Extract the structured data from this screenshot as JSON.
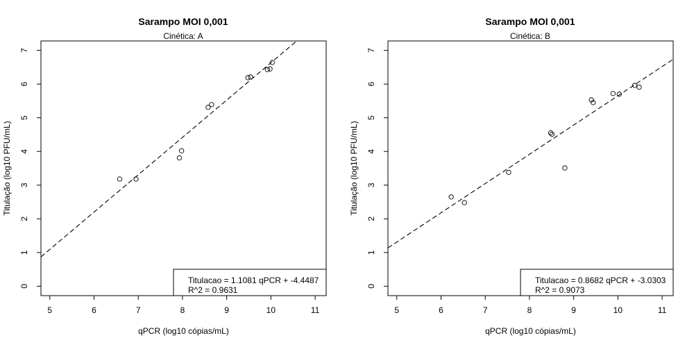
{
  "chart_data": [
    {
      "type": "scatter",
      "title": "Sarampo MOI 0,001",
      "subtitle": "Cinética: A",
      "xlabel": "qPCR (log10 cópias/mL)",
      "ylabel": "Titulação (log10 PFU/mL)",
      "xlim": [
        4.8,
        11.25
      ],
      "ylim": [
        -0.28,
        7.28
      ],
      "xticks": [
        5,
        6,
        7,
        8,
        9,
        10,
        11
      ],
      "yticks": [
        0,
        1,
        2,
        3,
        4,
        5,
        6,
        7
      ],
      "grid": false,
      "points": [
        {
          "x": 6.58,
          "y": 3.18
        },
        {
          "x": 6.95,
          "y": 3.18
        },
        {
          "x": 7.93,
          "y": 3.81
        },
        {
          "x": 7.98,
          "y": 4.02
        },
        {
          "x": 8.58,
          "y": 5.31
        },
        {
          "x": 8.66,
          "y": 5.39
        },
        {
          "x": 9.48,
          "y": 6.19
        },
        {
          "x": 9.54,
          "y": 6.21
        },
        {
          "x": 9.92,
          "y": 6.43
        },
        {
          "x": 9.98,
          "y": 6.45
        },
        {
          "x": 10.03,
          "y": 6.64
        }
      ],
      "fit": {
        "slope": 1.1081,
        "intercept": -4.4487
      },
      "legend": {
        "position": "bottom-right",
        "line1": "Titulacao = 1.1081 qPCR + -4.4487",
        "line2": "R^2 = 0.9631"
      }
    },
    {
      "type": "scatter",
      "title": "Sarampo MOI 0,001",
      "subtitle": "Cinética: B",
      "xlabel": "qPCR (log10 cópias/mL)",
      "ylabel": "Titulação (log10 PFU/mL)",
      "xlim": [
        4.8,
        11.25
      ],
      "ylim": [
        -0.28,
        7.28
      ],
      "xticks": [
        5,
        6,
        7,
        8,
        9,
        10,
        11
      ],
      "yticks": [
        0,
        1,
        2,
        3,
        4,
        5,
        6,
        7
      ],
      "grid": false,
      "points": [
        {
          "x": 6.23,
          "y": 2.65
        },
        {
          "x": 6.53,
          "y": 2.48
        },
        {
          "x": 7.53,
          "y": 3.38
        },
        {
          "x": 8.48,
          "y": 4.55
        },
        {
          "x": 8.51,
          "y": 4.51
        },
        {
          "x": 8.8,
          "y": 3.51
        },
        {
          "x": 9.4,
          "y": 5.53
        },
        {
          "x": 9.44,
          "y": 5.45
        },
        {
          "x": 9.89,
          "y": 5.72
        },
        {
          "x": 10.03,
          "y": 5.7
        },
        {
          "x": 10.38,
          "y": 5.96
        },
        {
          "x": 10.48,
          "y": 5.91
        }
      ],
      "fit": {
        "slope": 0.8682,
        "intercept": -3.0303
      },
      "legend": {
        "position": "bottom-right",
        "line1": "Titulacao = 0.8682 qPCR + -3.0303",
        "line2": "R^2 = 0.9073"
      }
    }
  ]
}
